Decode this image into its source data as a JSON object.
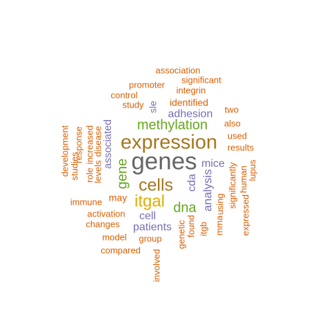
{
  "palette": {
    "orange": "#d95f02",
    "purple": "#7570b3",
    "green": "#66a61e",
    "gold": "#e6ab02",
    "brown": "#a6761d",
    "gray": "#666666"
  },
  "words": [
    {
      "text": "genes",
      "color": "gray",
      "weight": 9
    },
    {
      "text": "expression",
      "color": "brown",
      "weight": 8
    },
    {
      "text": "cells",
      "color": "brown",
      "weight": 7
    },
    {
      "text": "itgal",
      "color": "gold",
      "weight": 7
    },
    {
      "text": "methylation",
      "color": "green",
      "weight": 5
    },
    {
      "text": "dna",
      "color": "green",
      "weight": 5
    },
    {
      "text": "gene",
      "color": "green",
      "weight": 5
    },
    {
      "text": "analysis",
      "color": "purple",
      "weight": 4
    },
    {
      "text": "mice",
      "color": "purple",
      "weight": 4
    },
    {
      "text": "cda",
      "color": "purple",
      "weight": 4
    },
    {
      "text": "adhesion",
      "color": "purple",
      "weight": 4
    },
    {
      "text": "associated",
      "color": "purple",
      "weight": 4
    },
    {
      "text": "patients",
      "color": "purple",
      "weight": 4
    },
    {
      "text": "cell",
      "color": "purple",
      "weight": 4
    },
    {
      "text": "sle",
      "color": "purple",
      "weight": 3
    },
    {
      "text": "identified",
      "color": "orange",
      "weight": 3
    },
    {
      "text": "may",
      "color": "orange",
      "weight": 3
    },
    {
      "text": "study",
      "color": "orange",
      "weight": 2
    },
    {
      "text": "integrin",
      "color": "orange",
      "weight": 2
    },
    {
      "text": "promoter",
      "color": "orange",
      "weight": 2
    },
    {
      "text": "significant",
      "color": "orange",
      "weight": 2
    },
    {
      "text": "association",
      "color": "orange",
      "weight": 2
    },
    {
      "text": "control",
      "color": "orange",
      "weight": 2
    },
    {
      "text": "two",
      "color": "orange",
      "weight": 2
    },
    {
      "text": "also",
      "color": "orange",
      "weight": 2
    },
    {
      "text": "used",
      "color": "orange",
      "weight": 2
    },
    {
      "text": "results",
      "color": "orange",
      "weight": 2
    },
    {
      "text": "using",
      "color": "orange",
      "weight": 2
    },
    {
      "text": "significantly",
      "color": "orange",
      "weight": 2
    },
    {
      "text": "human",
      "color": "orange",
      "weight": 2
    },
    {
      "text": "lupus",
      "color": "orange",
      "weight": 2
    },
    {
      "text": "expressed",
      "color": "orange",
      "weight": 2
    },
    {
      "text": "mma",
      "color": "orange",
      "weight": 2
    },
    {
      "text": "itgb",
      "color": "orange",
      "weight": 2
    },
    {
      "text": "found",
      "color": "orange",
      "weight": 2
    },
    {
      "text": "genetic",
      "color": "orange",
      "weight": 2
    },
    {
      "text": "group",
      "color": "orange",
      "weight": 2
    },
    {
      "text": "involved",
      "color": "orange",
      "weight": 2
    },
    {
      "text": "compared",
      "color": "orange",
      "weight": 2
    },
    {
      "text": "model",
      "color": "orange",
      "weight": 2
    },
    {
      "text": "changes",
      "color": "orange",
      "weight": 2
    },
    {
      "text": "activation",
      "color": "orange",
      "weight": 2
    },
    {
      "text": "immune",
      "color": "orange",
      "weight": 2
    },
    {
      "text": "levels",
      "color": "orange",
      "weight": 2
    },
    {
      "text": "role",
      "color": "orange",
      "weight": 2
    },
    {
      "text": "increased",
      "color": "orange",
      "weight": 2
    },
    {
      "text": "disease",
      "color": "orange",
      "weight": 2
    },
    {
      "text": "response",
      "color": "orange",
      "weight": 2
    },
    {
      "text": "studies",
      "color": "orange",
      "weight": 2
    },
    {
      "text": "development",
      "color": "orange",
      "weight": 2
    }
  ]
}
